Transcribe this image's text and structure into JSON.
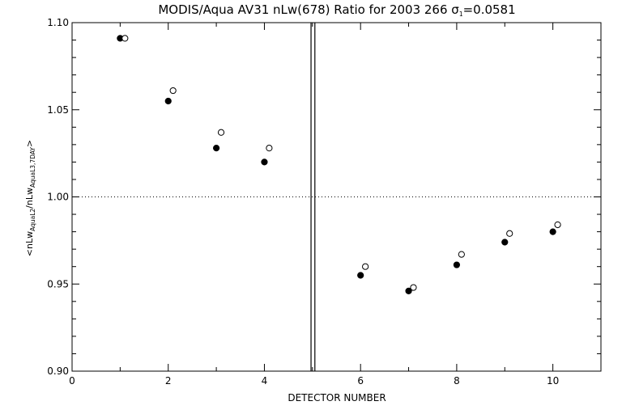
{
  "chart_data": {
    "type": "scatter",
    "title": {
      "main": "MODIS/Aqua AV31 nLw(678) Ratio for 2003 266 ",
      "sigma_symbol": "σ",
      "sigma_sub": "1",
      "sigma_value": "=0.0581"
    },
    "xlabel": "DETECTOR NUMBER",
    "ylabel": {
      "pre": "<nLw",
      "sub1": "AquaL2",
      "mid": "/nLw",
      "sub2": "AquaL3,7DAY",
      "post": ">"
    },
    "xlim": [
      0,
      11
    ],
    "ylim": [
      0.9,
      1.1
    ],
    "x_ticks": [
      "0",
      "2",
      "4",
      "6",
      "8",
      "10"
    ],
    "y_ticks": [
      "0.90",
      "0.95",
      "1.00",
      "1.05",
      "1.10"
    ],
    "reference_line_y": 1.0,
    "separator_x": [
      4.97,
      5.05
    ],
    "series": [
      {
        "marker": "filled-circle",
        "x": [
          1,
          2,
          3,
          4,
          6,
          7,
          8,
          9,
          10
        ],
        "y": [
          1.091,
          1.055,
          1.028,
          1.02,
          0.955,
          0.946,
          0.961,
          0.974,
          0.98
        ]
      },
      {
        "marker": "open-circle",
        "x": [
          1.1,
          2.1,
          3.1,
          4.1,
          6.1,
          7.1,
          8.1,
          9.1,
          10.1
        ],
        "y": [
          1.091,
          1.061,
          1.037,
          1.028,
          0.96,
          0.948,
          0.967,
          0.979,
          0.984
        ]
      }
    ]
  }
}
